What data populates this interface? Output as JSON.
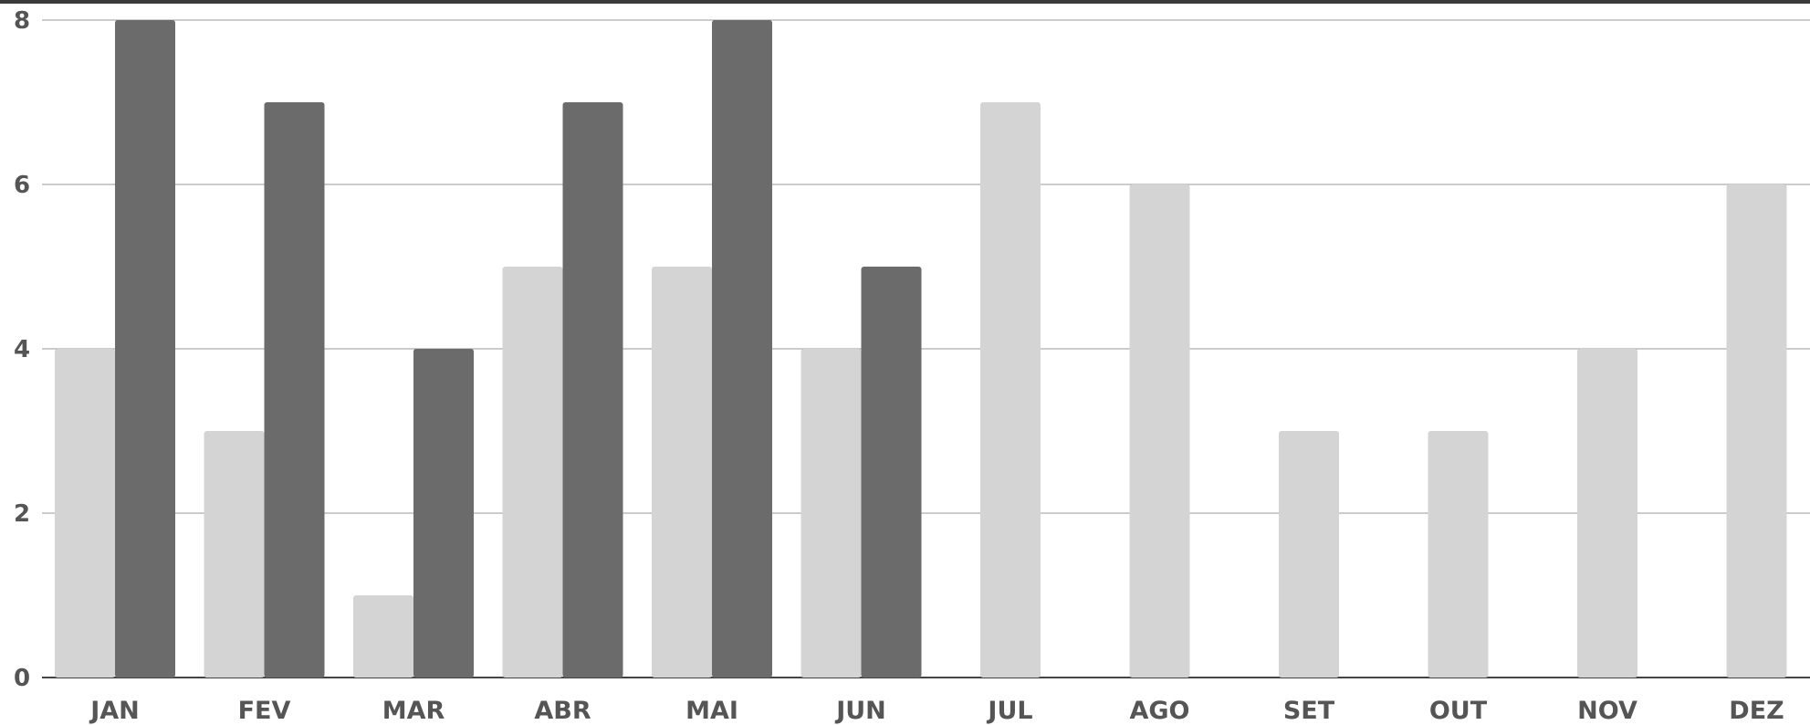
{
  "chart_data": {
    "type": "bar",
    "categories": [
      "JAN",
      "FEV",
      "MAR",
      "ABR",
      "MAI",
      "JUN",
      "JUL",
      "AGO",
      "SET",
      "OUT",
      "NOV",
      "DEZ"
    ],
    "series": [
      {
        "values": [
          4,
          3,
          1,
          5,
          5,
          4,
          7,
          6,
          3,
          3,
          4,
          6
        ],
        "color": "#d4d4d4"
      },
      {
        "values": [
          8,
          7,
          4,
          7,
          8,
          5,
          null,
          null,
          null,
          null,
          null,
          null
        ],
        "color": "#6b6b6b"
      }
    ],
    "yticks": [
      "0",
      "2",
      "4",
      "6",
      "8"
    ],
    "ylim": [
      0,
      8
    ],
    "grid": true
  }
}
